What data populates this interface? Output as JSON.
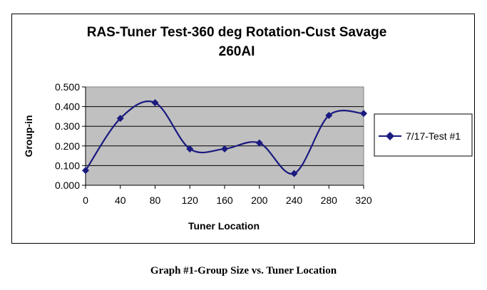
{
  "chart_data": {
    "type": "line",
    "title_lines": [
      "RAS-Tuner Test-360 deg Rotation-Cust Savage",
      "260AI"
    ],
    "xlabel": "Tuner Location",
    "ylabel": "Group-in",
    "x": [
      0,
      40,
      80,
      120,
      160,
      200,
      240,
      280,
      320
    ],
    "x_tick_labels": [
      "0",
      "40",
      "80",
      "120",
      "160",
      "200",
      "240",
      "280",
      "320"
    ],
    "y_tick_labels": [
      "0.000",
      "0.100",
      "0.200",
      "0.300",
      "0.400",
      "0.500"
    ],
    "xlim": [
      0,
      320
    ],
    "ylim": [
      0,
      0.5
    ],
    "grid": "horizontal",
    "plot_background": "#c0c0c0",
    "smoothed": true,
    "legend_position": "right",
    "series": [
      {
        "name": "7/17-Test #1",
        "color": "#1a1a80",
        "marker": "diamond",
        "values": [
          0.075,
          0.34,
          0.42,
          0.185,
          0.185,
          0.215,
          0.06,
          0.355,
          0.365
        ]
      }
    ]
  },
  "caption": "Graph #1-Group Size vs. Tuner Location"
}
